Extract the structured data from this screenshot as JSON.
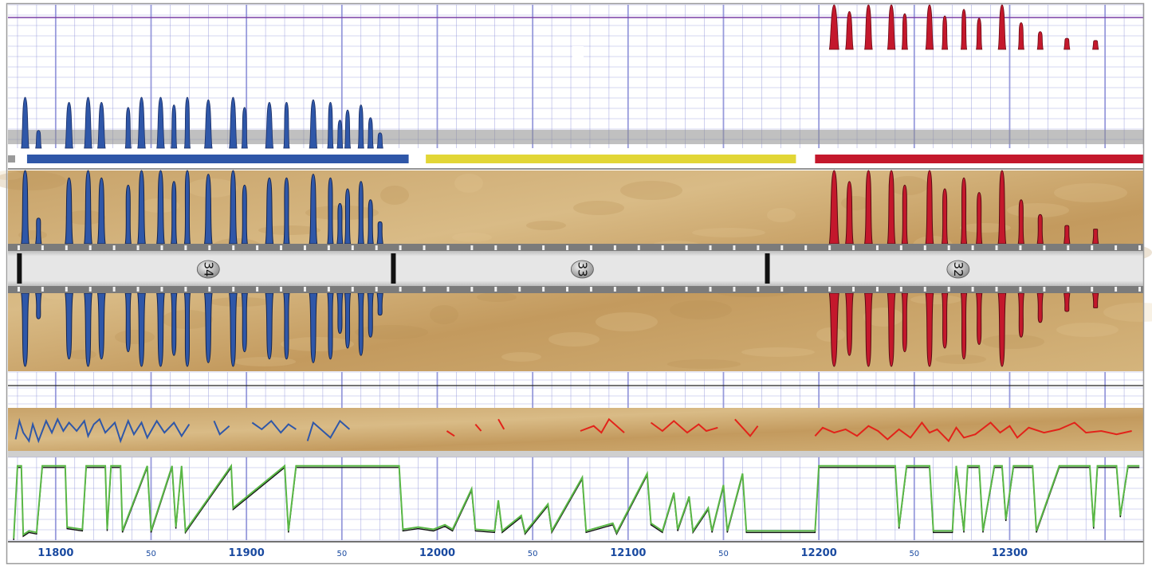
{
  "chart_data": {
    "type": "line",
    "x_axis": {
      "min": 11775,
      "max": 12370,
      "major_ticks": [
        11800,
        11900,
        12000,
        12100,
        12200,
        12300
      ],
      "major_tick_labels": [
        "11800",
        "11900",
        "12000",
        "12100",
        "12200",
        "12300"
      ],
      "minor_ticks": [
        11850,
        11950,
        12050,
        12150,
        12250
      ],
      "minor_tick_labels": [
        "50",
        "50",
        "50",
        "50",
        "50"
      ]
    },
    "grid": true,
    "colors": {
      "zone_blue": "#2f57a8",
      "zone_yellow": "#e2d636",
      "zone_red": "#c4182c",
      "gamma_ray_a": "#2f57a8",
      "gamma_ray_b": "#c4182c",
      "resistivity_a": "#5ab846",
      "resistivity_b": "#111111",
      "rock_texture": "#cfa86c",
      "grid_line": "#8c90d8",
      "pipe": "#dcdcdc"
    },
    "zones": [
      {
        "color": "blue",
        "start": 11785,
        "end": 11985
      },
      {
        "color": "yellow",
        "start": 11994,
        "end": 12188
      },
      {
        "color": "red",
        "start": 12198,
        "end": 12370
      }
    ],
    "joints": {
      "boundaries": [
        11781,
        11977,
        12173
      ],
      "labels": [
        "34",
        "33",
        "32"
      ],
      "label_depths": [
        11880,
        12076,
        12273
      ]
    },
    "blue_peaks": [
      {
        "x": 11784,
        "w": 4,
        "h": 1.0
      },
      {
        "x": 11791,
        "w": 3,
        "h": 0.35
      },
      {
        "x": 11807,
        "w": 4,
        "h": 0.9
      },
      {
        "x": 11817,
        "w": 4,
        "h": 1.0
      },
      {
        "x": 11824,
        "w": 4,
        "h": 0.9
      },
      {
        "x": 11838,
        "w": 3,
        "h": 0.8
      },
      {
        "x": 11845,
        "w": 4,
        "h": 1.0
      },
      {
        "x": 11855,
        "w": 4,
        "h": 1.0
      },
      {
        "x": 11862,
        "w": 3,
        "h": 0.85
      },
      {
        "x": 11869,
        "w": 3,
        "h": 1.0
      },
      {
        "x": 11880,
        "w": 4,
        "h": 0.95
      },
      {
        "x": 11893,
        "w": 4,
        "h": 1.0
      },
      {
        "x": 11899,
        "w": 3,
        "h": 0.8
      },
      {
        "x": 11912,
        "w": 4,
        "h": 0.9
      },
      {
        "x": 11921,
        "w": 3,
        "h": 0.9
      },
      {
        "x": 11935,
        "w": 4,
        "h": 0.95
      },
      {
        "x": 11944,
        "w": 3,
        "h": 0.9
      },
      {
        "x": 11949,
        "w": 3,
        "h": 0.55
      },
      {
        "x": 11953,
        "w": 3,
        "h": 0.75
      },
      {
        "x": 11960,
        "w": 3,
        "h": 0.85
      },
      {
        "x": 11965,
        "w": 3,
        "h": 0.6
      },
      {
        "x": 11970,
        "w": 3,
        "h": 0.3
      }
    ],
    "red_peaks": [
      {
        "x": 12208,
        "w": 5,
        "h": 1.0
      },
      {
        "x": 12216,
        "w": 4,
        "h": 0.85
      },
      {
        "x": 12226,
        "w": 4,
        "h": 1.0
      },
      {
        "x": 12238,
        "w": 4,
        "h": 1.0
      },
      {
        "x": 12245,
        "w": 3,
        "h": 0.8
      },
      {
        "x": 12258,
        "w": 4,
        "h": 1.0
      },
      {
        "x": 12266,
        "w": 3,
        "h": 0.75
      },
      {
        "x": 12276,
        "w": 3,
        "h": 0.9
      },
      {
        "x": 12284,
        "w": 3,
        "h": 0.7
      },
      {
        "x": 12296,
        "w": 4,
        "h": 1.0
      },
      {
        "x": 12306,
        "w": 3,
        "h": 0.6
      },
      {
        "x": 12316,
        "w": 3,
        "h": 0.4
      },
      {
        "x": 12330,
        "w": 3,
        "h": 0.25
      },
      {
        "x": 12345,
        "w": 3,
        "h": 0.2
      }
    ],
    "resistivity": [
      [
        11778,
        0.0
      ],
      [
        11780,
        0.95
      ],
      [
        11782,
        0.95
      ],
      [
        11783,
        0.05
      ],
      [
        11786,
        0.1
      ],
      [
        11790,
        0.08
      ],
      [
        11793,
        0.95
      ],
      [
        11805,
        0.95
      ],
      [
        11806,
        0.15
      ],
      [
        11814,
        0.12
      ],
      [
        11816,
        0.95
      ],
      [
        11826,
        0.95
      ],
      [
        11827,
        0.12
      ],
      [
        11829,
        0.95
      ],
      [
        11834,
        0.95
      ],
      [
        11835,
        0.1
      ],
      [
        11848,
        0.95
      ],
      [
        11850,
        0.1
      ],
      [
        11861,
        0.95
      ],
      [
        11863,
        0.15
      ],
      [
        11866,
        0.95
      ],
      [
        11868,
        0.1
      ],
      [
        11892,
        0.95
      ],
      [
        11893,
        0.4
      ],
      [
        11920,
        0.95
      ],
      [
        11922,
        0.1
      ],
      [
        11926,
        0.95
      ],
      [
        11980,
        0.95
      ],
      [
        11982,
        0.12
      ],
      [
        11990,
        0.15
      ],
      [
        11998,
        0.12
      ],
      [
        12004,
        0.18
      ],
      [
        12008,
        0.12
      ],
      [
        12018,
        0.65
      ],
      [
        12020,
        0.12
      ],
      [
        12030,
        0.1
      ],
      [
        12032,
        0.5
      ],
      [
        12034,
        0.1
      ],
      [
        12044,
        0.3
      ],
      [
        12046,
        0.08
      ],
      [
        12058,
        0.45
      ],
      [
        12060,
        0.1
      ],
      [
        12076,
        0.8
      ],
      [
        12078,
        0.1
      ],
      [
        12092,
        0.2
      ],
      [
        12094,
        0.08
      ],
      [
        12110,
        0.85
      ],
      [
        12112,
        0.2
      ],
      [
        12118,
        0.1
      ],
      [
        12124,
        0.6
      ],
      [
        12126,
        0.12
      ],
      [
        12132,
        0.55
      ],
      [
        12134,
        0.1
      ],
      [
        12142,
        0.4
      ],
      [
        12144,
        0.1
      ],
      [
        12150,
        0.7
      ],
      [
        12152,
        0.1
      ],
      [
        12160,
        0.85
      ],
      [
        12162,
        0.1
      ],
      [
        12198,
        0.1
      ],
      [
        12200,
        0.95
      ],
      [
        12240,
        0.95
      ],
      [
        12242,
        0.15
      ],
      [
        12246,
        0.95
      ],
      [
        12258,
        0.95
      ],
      [
        12260,
        0.1
      ],
      [
        12270,
        0.1
      ],
      [
        12272,
        0.95
      ],
      [
        12276,
        0.1
      ],
      [
        12278,
        0.95
      ],
      [
        12284,
        0.95
      ],
      [
        12286,
        0.1
      ],
      [
        12292,
        0.95
      ],
      [
        12296,
        0.95
      ],
      [
        12298,
        0.25
      ],
      [
        12302,
        0.95
      ],
      [
        12312,
        0.95
      ],
      [
        12314,
        0.1
      ],
      [
        12326,
        0.95
      ],
      [
        12342,
        0.95
      ],
      [
        12344,
        0.15
      ],
      [
        12346,
        0.95
      ],
      [
        12356,
        0.95
      ],
      [
        12358,
        0.3
      ],
      [
        12362,
        0.95
      ],
      [
        12368,
        0.95
      ]
    ],
    "caliper_blue": [
      [
        11779,
        0.25
      ],
      [
        11781,
        0.8
      ],
      [
        11783,
        0.45
      ],
      [
        11786,
        0.2
      ],
      [
        11788,
        0.7
      ],
      [
        11791,
        0.2
      ],
      [
        11795,
        0.8
      ],
      [
        11798,
        0.45
      ],
      [
        11801,
        0.85
      ],
      [
        11804,
        0.5
      ],
      [
        11807,
        0.75
      ],
      [
        11811,
        0.5
      ],
      [
        11815,
        0.8
      ],
      [
        11817,
        0.35
      ],
      [
        11820,
        0.7
      ],
      [
        11823,
        0.85
      ],
      [
        11826,
        0.45
      ],
      [
        11831,
        0.75
      ],
      [
        11834,
        0.2
      ],
      [
        11838,
        0.8
      ],
      [
        11841,
        0.4
      ],
      [
        11845,
        0.75
      ],
      [
        11848,
        0.3
      ],
      [
        11853,
        0.8
      ],
      [
        11857,
        0.45
      ],
      [
        11862,
        0.75
      ],
      [
        11866,
        0.35
      ],
      [
        11870,
        0.7
      ],
      [
        11876,
        0.4
      ],
      [
        11883,
        0.8
      ],
      [
        11886,
        0.4
      ],
      [
        11891,
        0.65
      ],
      [
        11897,
        0.5
      ],
      [
        11903,
        0.75
      ],
      [
        11908,
        0.55
      ],
      [
        11913,
        0.8
      ],
      [
        11918,
        0.45
      ],
      [
        11922,
        0.7
      ],
      [
        11926,
        0.55
      ],
      [
        11932,
        0.2
      ],
      [
        11935,
        0.75
      ],
      [
        11940,
        0.5
      ],
      [
        11944,
        0.3
      ],
      [
        11949,
        0.8
      ],
      [
        11954,
        0.55
      ],
      [
        11960,
        0.75
      ],
      [
        11966,
        0.6
      ],
      [
        11972,
        0.85
      ]
    ],
    "caliper_red": [
      [
        12005,
        0.5
      ],
      [
        12009,
        0.35
      ],
      [
        12020,
        0.7
      ],
      [
        12023,
        0.5
      ],
      [
        12032,
        0.85
      ],
      [
        12035,
        0.55
      ],
      [
        12064,
        0.7
      ],
      [
        12075,
        0.5
      ],
      [
        12082,
        0.65
      ],
      [
        12086,
        0.45
      ],
      [
        12090,
        0.85
      ],
      [
        12098,
        0.45
      ],
      [
        12112,
        0.75
      ],
      [
        12118,
        0.5
      ],
      [
        12124,
        0.8
      ],
      [
        12131,
        0.45
      ],
      [
        12137,
        0.7
      ],
      [
        12141,
        0.5
      ],
      [
        12147,
        0.6
      ],
      [
        12156,
        0.85
      ],
      [
        12164,
        0.35
      ],
      [
        12168,
        0.65
      ],
      [
        12198,
        0.35
      ],
      [
        12202,
        0.6
      ],
      [
        12208,
        0.45
      ],
      [
        12214,
        0.55
      ],
      [
        12220,
        0.35
      ],
      [
        12226,
        0.65
      ],
      [
        12231,
        0.5
      ],
      [
        12236,
        0.25
      ],
      [
        12242,
        0.55
      ],
      [
        12248,
        0.3
      ],
      [
        12254,
        0.75
      ],
      [
        12258,
        0.45
      ],
      [
        12262,
        0.55
      ],
      [
        12268,
        0.2
      ],
      [
        12272,
        0.6
      ],
      [
        12276,
        0.3
      ],
      [
        12282,
        0.4
      ],
      [
        12290,
        0.75
      ],
      [
        12295,
        0.45
      ],
      [
        12300,
        0.65
      ],
      [
        12304,
        0.3
      ],
      [
        12310,
        0.6
      ],
      [
        12318,
        0.45
      ],
      [
        12326,
        0.55
      ],
      [
        12334,
        0.75
      ],
      [
        12340,
        0.45
      ],
      [
        12348,
        0.5
      ],
      [
        12356,
        0.4
      ],
      [
        12364,
        0.5
      ]
    ]
  }
}
